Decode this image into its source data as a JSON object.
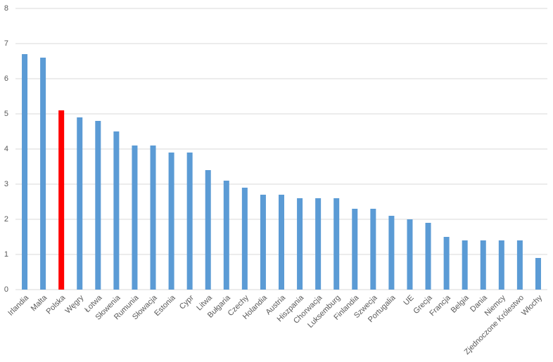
{
  "chart_data": {
    "type": "bar",
    "categories": [
      "Irlandia",
      "Malta",
      "Polska",
      "Węgry",
      "Łotwa",
      "Słowenia",
      "Rumunia",
      "Słowacja",
      "Estonia",
      "Cypr",
      "Litwa",
      "Bułgaria",
      "Czechy",
      "Holandia",
      "Austria",
      "Hiszpania",
      "Chorwacja",
      "Luksemburg",
      "Finlandia",
      "Szwecja",
      "Portugalia",
      "UE",
      "Grecja",
      "Francja",
      "Belgia",
      "Dania",
      "Niemcy",
      "Zjednoczone Królestwo",
      "Włochy"
    ],
    "values": [
      6.7,
      6.6,
      5.1,
      4.9,
      4.8,
      4.5,
      4.1,
      4.1,
      3.9,
      3.9,
      3.4,
      3.1,
      2.9,
      2.7,
      2.7,
      2.6,
      2.6,
      2.6,
      2.3,
      2.3,
      2.1,
      2.0,
      1.9,
      1.5,
      1.4,
      1.4,
      1.4,
      1.4,
      0.9
    ],
    "colors": [
      "#5b9bd5",
      "#5b9bd5",
      "#ff0000",
      "#5b9bd5",
      "#5b9bd5",
      "#5b9bd5",
      "#5b9bd5",
      "#5b9bd5",
      "#5b9bd5",
      "#5b9bd5",
      "#5b9bd5",
      "#5b9bd5",
      "#5b9bd5",
      "#5b9bd5",
      "#5b9bd5",
      "#5b9bd5",
      "#5b9bd5",
      "#5b9bd5",
      "#5b9bd5",
      "#5b9bd5",
      "#5b9bd5",
      "#5b9bd5",
      "#5b9bd5",
      "#5b9bd5",
      "#5b9bd5",
      "#5b9bd5",
      "#5b9bd5",
      "#5b9bd5",
      "#5b9bd5"
    ],
    "ylim": [
      0,
      8
    ],
    "yticks": [
      0,
      1,
      2,
      3,
      4,
      5,
      6,
      7,
      8
    ],
    "grid": true
  }
}
